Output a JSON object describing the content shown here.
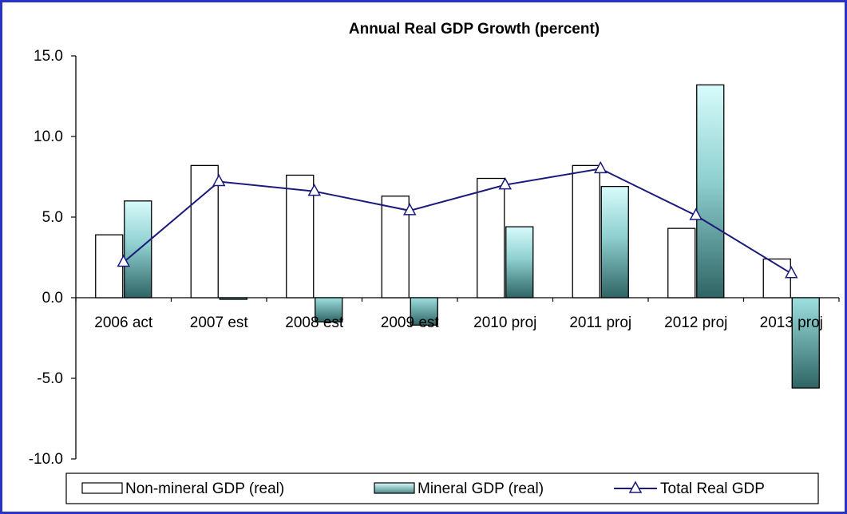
{
  "chart_data": {
    "type": "bar",
    "title": "Annual Real GDP Growth (percent)",
    "categories": [
      "2006 act",
      "2007 est",
      "2008 est",
      "2009 est",
      "2010 proj",
      "2011 proj",
      "2012 proj",
      "2013 proj"
    ],
    "series": [
      {
        "name": "Non-mineral GDP (real)",
        "kind": "bar",
        "color": "#ffffff",
        "values": [
          3.9,
          8.2,
          7.6,
          6.3,
          7.4,
          8.2,
          4.3,
          2.4
        ]
      },
      {
        "name": "Mineral GDP (real)",
        "kind": "bar",
        "color": "#9fe3e3",
        "values": [
          6.0,
          -0.1,
          -1.5,
          -1.7,
          4.4,
          6.9,
          13.2,
          -5.6
        ]
      },
      {
        "name": "Total Real GDP",
        "kind": "line",
        "color": "#1a1a7a",
        "values": [
          2.2,
          7.2,
          6.6,
          5.4,
          7.0,
          8.0,
          5.1,
          1.5
        ]
      }
    ],
    "ylim": [
      -10,
      15
    ],
    "yticks": [
      "15.0",
      "10.0",
      "5.0",
      "0.0",
      "-5.0",
      "-10.0"
    ],
    "ytick_values": [
      15,
      10,
      5,
      0,
      -5,
      -10
    ],
    "legend_position": "bottom",
    "grid": false
  }
}
